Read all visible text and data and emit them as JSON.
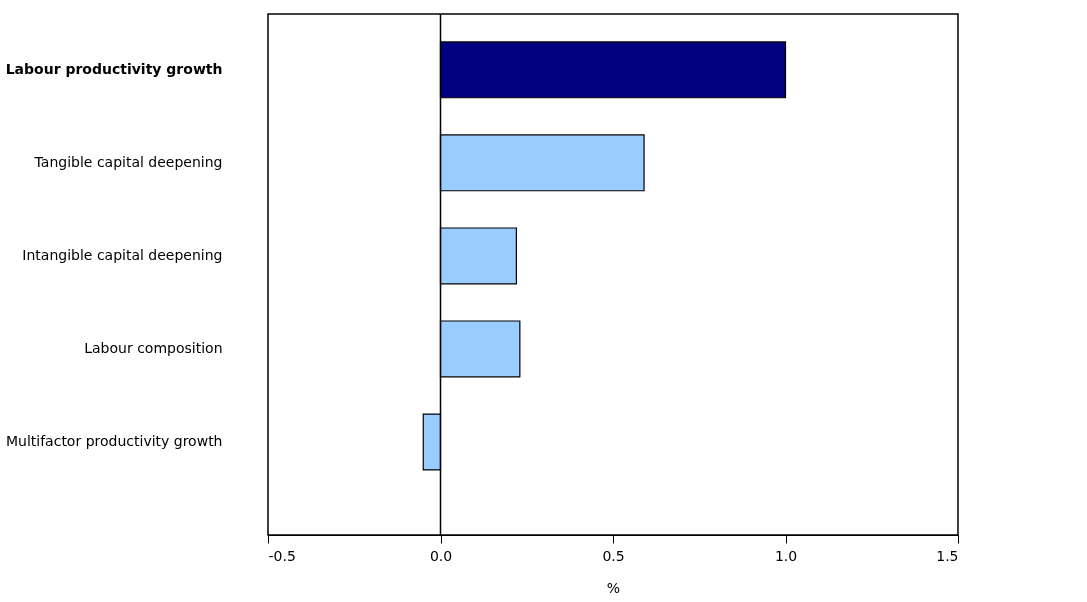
{
  "chart_data": {
    "type": "bar",
    "orientation": "horizontal",
    "xlabel": "%",
    "categories": [
      "Labour productivity growth",
      "Tangible capital deepening",
      "Intangible capital deepening",
      "Labour composition",
      "Multifactor productivity growth"
    ],
    "values": [
      1.0,
      0.59,
      0.22,
      0.23,
      -0.05
    ],
    "colors": [
      "#000080",
      "#99ccff",
      "#99ccff",
      "#99ccff",
      "#99ccff"
    ],
    "xlim": [
      -0.5,
      1.5
    ],
    "xticks": [
      {
        "value": -0.5,
        "label": "-0.5"
      },
      {
        "value": 0,
        "label": "0.0"
      },
      {
        "value": 0.5,
        "label": "0.5"
      },
      {
        "value": 1.0,
        "label": "1.0"
      },
      {
        "value": 1.5,
        "label": "1.5"
      }
    ],
    "ref_lines": [
      {
        "axis": "x",
        "value": 0
      }
    ]
  }
}
